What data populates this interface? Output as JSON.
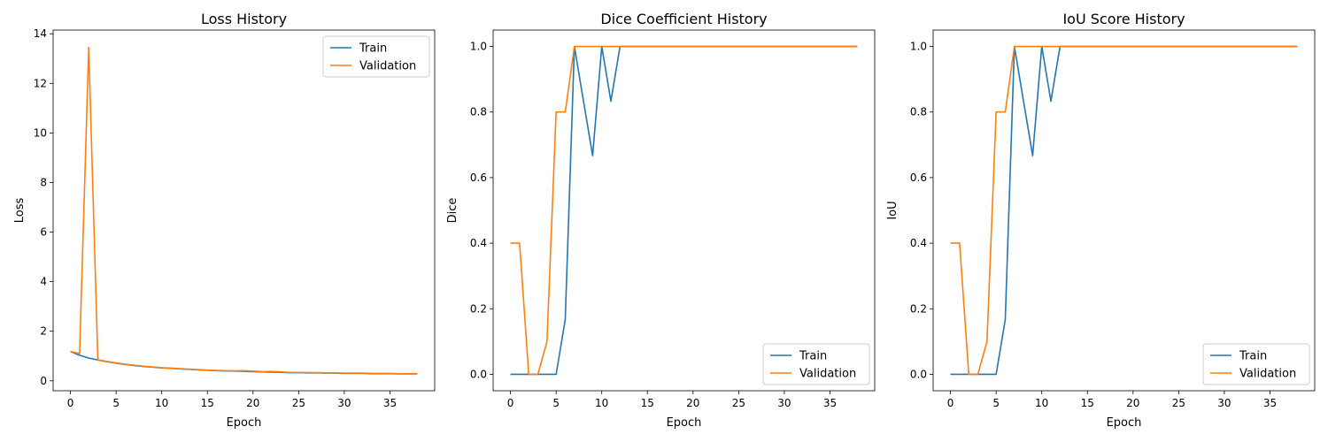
{
  "colors": {
    "train": "#1f77b4",
    "validation": "#ff7f0e"
  },
  "chart_data": [
    {
      "type": "line",
      "title": "Loss History",
      "xlabel": "Epoch",
      "ylabel": "Loss",
      "xlim": [
        -1.9,
        39.9
      ],
      "ylim": [
        -0.4,
        14.15
      ],
      "xticks": [
        0,
        5,
        10,
        15,
        20,
        25,
        30,
        35
      ],
      "yticks": [
        0,
        2,
        4,
        6,
        8,
        10,
        12,
        14
      ],
      "ytick_labels": [
        "0",
        "2",
        "4",
        "6",
        "8",
        "10",
        "12",
        "14"
      ],
      "legend_position": "top-right",
      "x": [
        0,
        1,
        2,
        3,
        4,
        5,
        6,
        7,
        8,
        9,
        10,
        11,
        12,
        13,
        14,
        15,
        16,
        17,
        18,
        19,
        20,
        21,
        22,
        23,
        24,
        25,
        26,
        27,
        28,
        29,
        30,
        31,
        32,
        33,
        34,
        35,
        36,
        37,
        38
      ],
      "series": [
        {
          "name": "Train",
          "values": [
            1.18,
            1.03,
            0.92,
            0.84,
            0.77,
            0.71,
            0.66,
            0.62,
            0.58,
            0.55,
            0.52,
            0.5,
            0.48,
            0.46,
            0.44,
            0.42,
            0.41,
            0.4,
            0.39,
            0.38,
            0.37,
            0.36,
            0.35,
            0.34,
            0.33,
            0.33,
            0.32,
            0.32,
            0.31,
            0.31,
            0.3,
            0.3,
            0.3,
            0.29,
            0.29,
            0.29,
            0.28,
            0.28,
            0.28
          ]
        },
        {
          "name": "Validation",
          "values": [
            1.18,
            1.1,
            13.45,
            0.85,
            0.78,
            0.72,
            0.67,
            0.63,
            0.59,
            0.56,
            0.53,
            0.51,
            0.49,
            0.47,
            0.45,
            0.43,
            0.42,
            0.41,
            0.4,
            0.41,
            0.39,
            0.37,
            0.38,
            0.36,
            0.34,
            0.34,
            0.33,
            0.33,
            0.32,
            0.32,
            0.31,
            0.31,
            0.31,
            0.3,
            0.3,
            0.3,
            0.29,
            0.29,
            0.29
          ]
        }
      ]
    },
    {
      "type": "line",
      "title": "Dice Coefficient History",
      "xlabel": "Epoch",
      "ylabel": "Dice",
      "xlim": [
        -1.9,
        39.9
      ],
      "ylim": [
        -0.05,
        1.05
      ],
      "xticks": [
        0,
        5,
        10,
        15,
        20,
        25,
        30,
        35
      ],
      "yticks": [
        0,
        0.2,
        0.4,
        0.6,
        0.8,
        1.0
      ],
      "ytick_labels": [
        "0.0",
        "0.2",
        "0.4",
        "0.6",
        "0.8",
        "1.0"
      ],
      "legend_position": "lower-right",
      "x": [
        0,
        1,
        2,
        3,
        4,
        5,
        6,
        7,
        8,
        9,
        10,
        11,
        12,
        13,
        14,
        15,
        16,
        17,
        18,
        19,
        20,
        21,
        22,
        23,
        24,
        25,
        26,
        27,
        28,
        29,
        30,
        31,
        32,
        33,
        34,
        35,
        36,
        37,
        38
      ],
      "series": [
        {
          "name": "Train",
          "values": [
            0,
            0,
            0,
            0,
            0,
            0,
            0.167,
            1.0,
            0.833,
            0.667,
            1.0,
            0.833,
            1,
            1,
            1,
            1,
            1,
            1,
            1,
            1,
            1,
            1,
            1,
            1,
            1,
            1,
            1,
            1,
            1,
            1,
            1,
            1,
            1,
            1,
            1,
            1,
            1,
            1,
            1
          ]
        },
        {
          "name": "Validation",
          "values": [
            0.4,
            0.4,
            0,
            0,
            0.1,
            0.8,
            0.8,
            1,
            1,
            1,
            1,
            1,
            1,
            1,
            1,
            1,
            1,
            1,
            1,
            1,
            1,
            1,
            1,
            1,
            1,
            1,
            1,
            1,
            1,
            1,
            1,
            1,
            1,
            1,
            1,
            1,
            1,
            1,
            1
          ]
        }
      ]
    },
    {
      "type": "line",
      "title": "IoU Score History",
      "xlabel": "Epoch",
      "ylabel": "IoU",
      "xlim": [
        -1.9,
        39.9
      ],
      "ylim": [
        -0.05,
        1.05
      ],
      "xticks": [
        0,
        5,
        10,
        15,
        20,
        25,
        30,
        35
      ],
      "yticks": [
        0,
        0.2,
        0.4,
        0.6,
        0.8,
        1.0
      ],
      "ytick_labels": [
        "0.0",
        "0.2",
        "0.4",
        "0.6",
        "0.8",
        "1.0"
      ],
      "legend_position": "lower-right",
      "x": [
        0,
        1,
        2,
        3,
        4,
        5,
        6,
        7,
        8,
        9,
        10,
        11,
        12,
        13,
        14,
        15,
        16,
        17,
        18,
        19,
        20,
        21,
        22,
        23,
        24,
        25,
        26,
        27,
        28,
        29,
        30,
        31,
        32,
        33,
        34,
        35,
        36,
        37,
        38
      ],
      "series": [
        {
          "name": "Train",
          "values": [
            0,
            0,
            0,
            0,
            0,
            0,
            0.167,
            1.0,
            0.833,
            0.667,
            1.0,
            0.833,
            1,
            1,
            1,
            1,
            1,
            1,
            1,
            1,
            1,
            1,
            1,
            1,
            1,
            1,
            1,
            1,
            1,
            1,
            1,
            1,
            1,
            1,
            1,
            1,
            1,
            1,
            1
          ]
        },
        {
          "name": "Validation",
          "values": [
            0.4,
            0.4,
            0,
            0,
            0.1,
            0.8,
            0.8,
            1,
            1,
            1,
            1,
            1,
            1,
            1,
            1,
            1,
            1,
            1,
            1,
            1,
            1,
            1,
            1,
            1,
            1,
            1,
            1,
            1,
            1,
            1,
            1,
            1,
            1,
            1,
            1,
            1,
            1,
            1,
            1
          ]
        }
      ]
    }
  ]
}
